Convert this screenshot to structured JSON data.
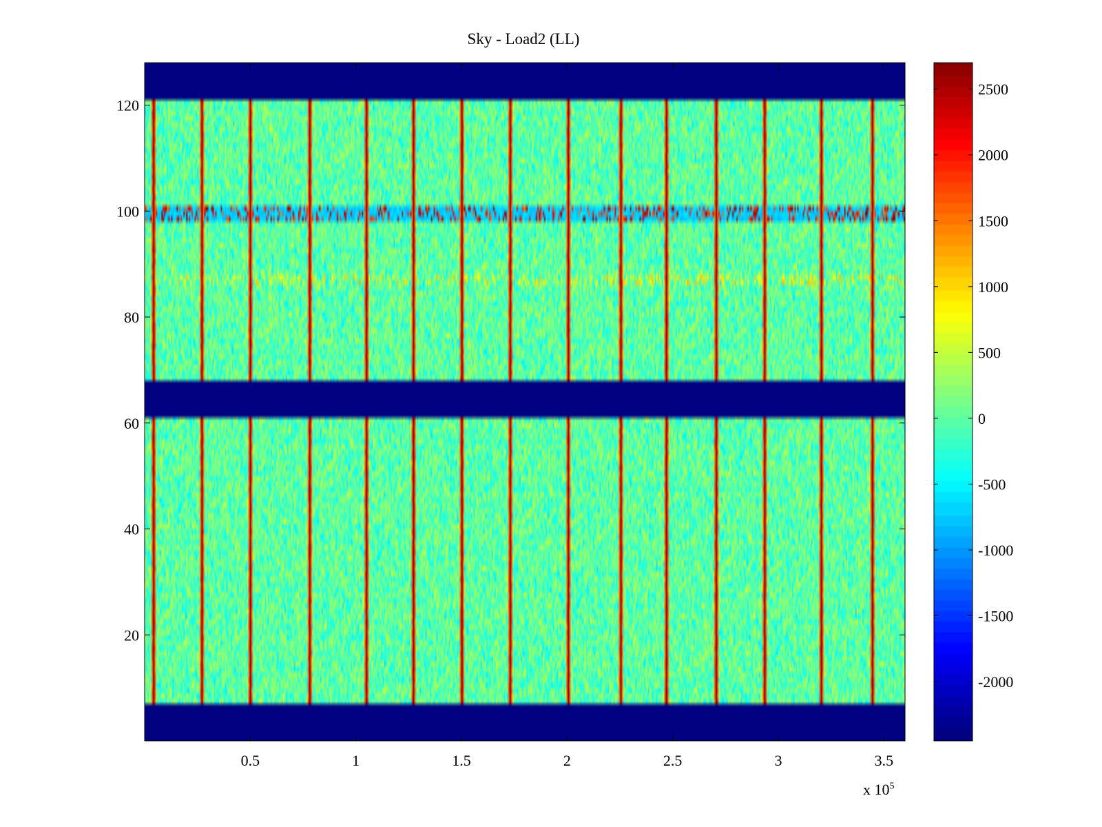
{
  "chart_data": {
    "type": "heatmap",
    "title": "Sky - Load2 (LL)",
    "xlabel": "",
    "ylabel": "",
    "x_exponent_label": "x 10",
    "x_exponent": "5",
    "xlim": [
      0,
      3.6
    ],
    "ylim": [
      0,
      128
    ],
    "x_ticks": [
      0.5,
      1,
      1.5,
      2,
      2.5,
      3,
      3.5
    ],
    "x_tick_labels": [
      "0.5",
      "1",
      "1.5",
      "2",
      "2.5",
      "3",
      "3.5"
    ],
    "y_ticks": [
      20,
      40,
      60,
      80,
      100,
      120
    ],
    "y_tick_labels": [
      "20",
      "40",
      "60",
      "80",
      "100",
      "120"
    ],
    "colormap": "jet",
    "clim": [
      -2450,
      2700
    ],
    "colorbar_ticks": [
      2500,
      2000,
      1500,
      1000,
      500,
      0,
      -500,
      -1000,
      -1500,
      -2000
    ],
    "colorbar_tick_labels": [
      "2500",
      "2000",
      "1500",
      "1000",
      "500",
      "0",
      "-500",
      "-1000",
      "-1500",
      "-2000"
    ],
    "masked_value": -2450,
    "masked_rows": [
      [
        0,
        7
      ],
      [
        61,
        68
      ],
      [
        121,
        128
      ]
    ],
    "data_blocks": [
      [
        7,
        61
      ],
      [
        68,
        121
      ]
    ],
    "anomaly_bands": [
      {
        "y_range": [
          98.5,
          101
        ],
        "description": "high-value band near channel 100",
        "value": 2500
      },
      {
        "y_range": [
          86,
          88
        ],
        "description": "elevated band near channel 87",
        "value": 1000
      }
    ],
    "dark_stripes_x": [
      0.04,
      0.27,
      0.5,
      0.78,
      1.05,
      1.27,
      1.5,
      1.73,
      2.0,
      2.25,
      2.47,
      2.7,
      2.93,
      3.2,
      3.44
    ],
    "background_value_range": [
      -700,
      600
    ],
    "grid": false
  }
}
